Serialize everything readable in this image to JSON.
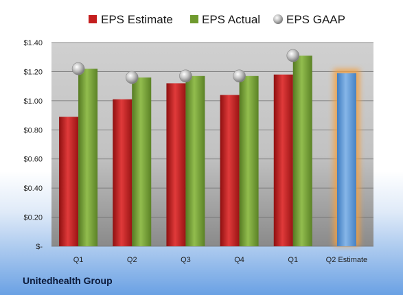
{
  "chart_data": {
    "type": "bar",
    "categories": [
      "Q1",
      "Q2",
      "Q3",
      "Q4",
      "Q1",
      "Q2 Estimate"
    ],
    "series": [
      {
        "name": "EPS Estimate",
        "values": [
          0.89,
          1.01,
          1.12,
          1.04,
          1.18,
          null
        ],
        "color": "#c41e1e"
      },
      {
        "name": "EPS Actual",
        "values": [
          1.22,
          1.16,
          1.17,
          1.17,
          1.31,
          null
        ],
        "color": "#6f9a2e"
      },
      {
        "name": "EPS GAAP",
        "values": [
          1.22,
          1.16,
          1.17,
          1.17,
          1.31,
          null
        ],
        "color": "#b8b8b8"
      }
    ],
    "projection": {
      "category": "Q2 Estimate",
      "value": 1.19,
      "color": "#5b9bd5",
      "glow": "#f5a040"
    },
    "y_ticks": [
      "$-",
      "$0.20",
      "$0.40",
      "$0.60",
      "$0.80",
      "$1.00",
      "$1.20",
      "$1.40"
    ],
    "ylim": [
      0,
      1.4
    ],
    "grid": true,
    "legend_position": "top"
  },
  "footer": {
    "company": "Unitedhealth Group"
  }
}
